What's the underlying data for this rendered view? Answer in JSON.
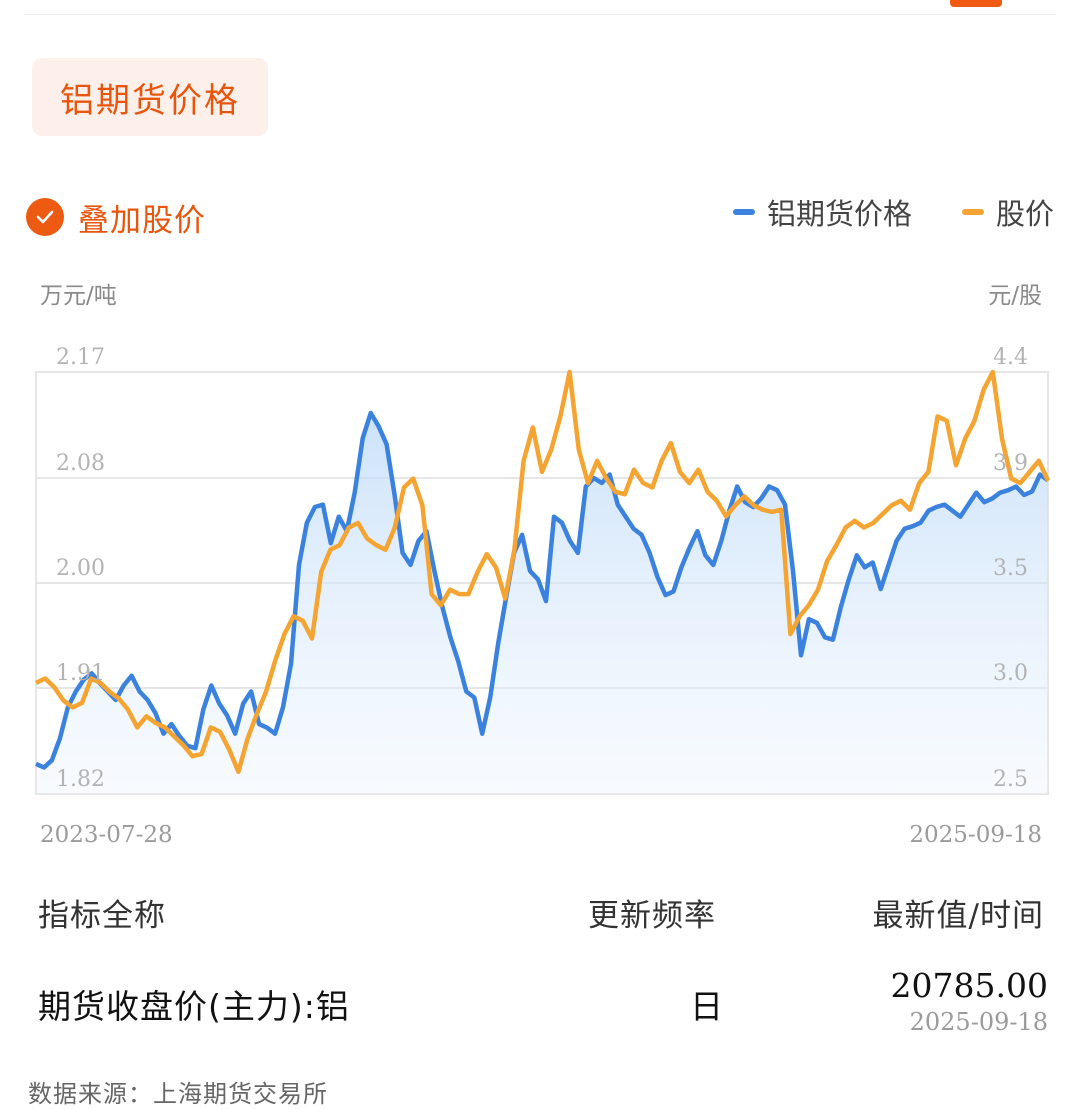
{
  "page": {
    "title": "铝期货价格",
    "overlay_label": "叠加股价",
    "overlay_checked": true
  },
  "legend": [
    {
      "label": "铝期货价格",
      "color": "#3a82dd"
    },
    {
      "label": "股价",
      "color": "#f5a431"
    }
  ],
  "axes": {
    "left_unit": "万元/吨",
    "right_unit": "元/股"
  },
  "chart_data": {
    "type": "line",
    "x_start": "2023-07-28",
    "x_end": "2025-09-18",
    "left_axis": {
      "unit": "万元/吨",
      "ticks": [
        "2.17",
        "2.08",
        "2.00",
        "1.91",
        "1.82"
      ],
      "range": [
        1.82,
        2.17
      ]
    },
    "right_axis": {
      "unit": "元/股",
      "ticks": [
        "4.4",
        "3.9",
        "3.5",
        "3.0",
        "2.5"
      ],
      "range": [
        2.5,
        4.4
      ]
    },
    "grid": true,
    "legend_position": "top-right",
    "series": [
      {
        "name": "铝期货价格",
        "color": "#3a82dd",
        "axis": "left",
        "area_fill": true,
        "values": [
          1.845,
          1.842,
          1.848,
          1.866,
          1.892,
          1.905,
          1.915,
          1.92,
          1.912,
          1.905,
          1.898,
          1.91,
          1.918,
          1.905,
          1.898,
          1.887,
          1.87,
          1.878,
          1.868,
          1.86,
          1.858,
          1.89,
          1.91,
          1.895,
          1.885,
          1.87,
          1.895,
          1.905,
          1.878,
          1.875,
          1.87,
          1.892,
          1.928,
          2.01,
          2.045,
          2.058,
          2.06,
          2.028,
          2.05,
          2.038,
          2.07,
          2.115,
          2.136,
          2.125,
          2.11,
          2.068,
          2.02,
          2.01,
          2.03,
          2.038,
          2.005,
          1.975,
          1.95,
          1.93,
          1.905,
          1.9,
          1.87,
          1.9,
          1.945,
          1.983,
          2.02,
          2.035,
          2.005,
          1.998,
          1.98,
          2.05,
          2.045,
          2.03,
          2.02,
          2.075,
          2.082,
          2.078,
          2.085,
          2.06,
          2.05,
          2.04,
          2.035,
          2.02,
          2.0,
          1.985,
          1.988,
          2.008,
          2.024,
          2.038,
          2.018,
          2.01,
          2.03,
          2.055,
          2.075,
          2.062,
          2.058,
          2.065,
          2.075,
          2.072,
          2.06,
          2.005,
          1.935,
          1.965,
          1.962,
          1.95,
          1.948,
          1.975,
          1.998,
          2.018,
          2.008,
          2.012,
          1.99,
          2.01,
          2.03,
          2.04,
          2.042,
          2.045,
          2.055,
          2.058,
          2.06,
          2.055,
          2.05,
          2.06,
          2.07,
          2.062,
          2.065,
          2.07,
          2.072,
          2.075,
          2.068,
          2.071,
          2.085,
          2.08
        ]
      },
      {
        "name": "股价",
        "color": "#f5a431",
        "axis": "right",
        "values": [
          3.0,
          3.02,
          2.98,
          2.92,
          2.89,
          2.91,
          3.02,
          3.0,
          2.96,
          2.93,
          2.88,
          2.8,
          2.85,
          2.82,
          2.8,
          2.76,
          2.72,
          2.67,
          2.68,
          2.8,
          2.78,
          2.7,
          2.6,
          2.75,
          2.86,
          2.96,
          3.1,
          3.22,
          3.3,
          3.28,
          3.2,
          3.5,
          3.6,
          3.62,
          3.7,
          3.72,
          3.65,
          3.62,
          3.6,
          3.7,
          3.88,
          3.92,
          3.8,
          3.4,
          3.35,
          3.42,
          3.4,
          3.4,
          3.5,
          3.58,
          3.52,
          3.38,
          3.6,
          4.0,
          4.15,
          3.95,
          4.05,
          4.2,
          4.4,
          4.05,
          3.9,
          4.0,
          3.92,
          3.86,
          3.85,
          3.96,
          3.9,
          3.88,
          4.0,
          4.08,
          3.95,
          3.9,
          3.96,
          3.86,
          3.82,
          3.75,
          3.8,
          3.84,
          3.8,
          3.78,
          3.77,
          3.78,
          3.22,
          3.3,
          3.35,
          3.42,
          3.55,
          3.62,
          3.7,
          3.73,
          3.7,
          3.72,
          3.76,
          3.8,
          3.82,
          3.78,
          3.9,
          3.95,
          4.2,
          4.18,
          3.98,
          4.1,
          4.18,
          4.32,
          4.4,
          4.1,
          3.92,
          3.9,
          3.95,
          4.0,
          3.91
        ]
      }
    ]
  },
  "table": {
    "headers": [
      "指标全称",
      "更新频率",
      "最新值/时间"
    ],
    "rows": [
      {
        "name": "期货收盘价(主力):铝",
        "frequency": "日",
        "value": "20785.00",
        "date": "2025-09-18"
      }
    ]
  },
  "source": "数据来源：上海期货交易所"
}
